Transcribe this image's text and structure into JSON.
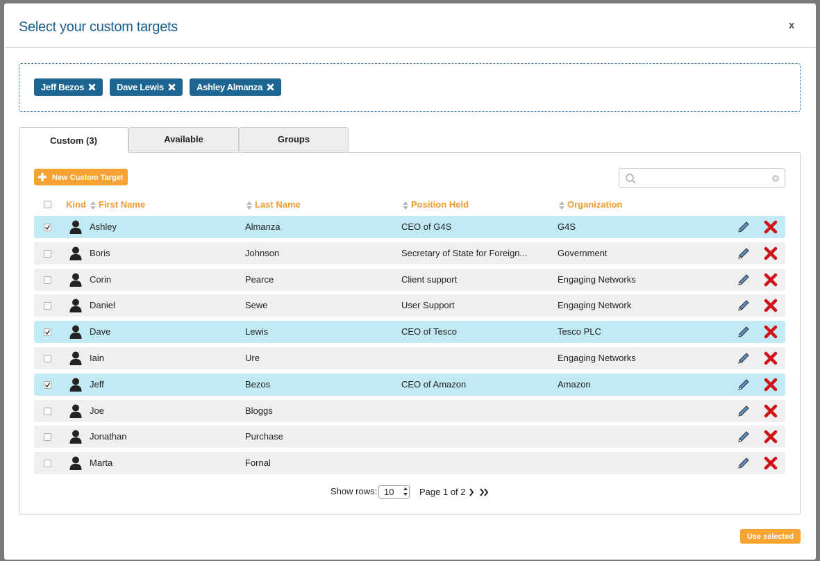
{
  "dialog": {
    "title": "Select your custom targets",
    "close": "x"
  },
  "selected": [
    "Jeff Bezos",
    "Dave Lewis",
    "Ashley Almanza"
  ],
  "tabs": [
    "Custom (3)",
    "Available",
    "Groups"
  ],
  "new_button": "New Custom Target",
  "table": {
    "headers": [
      "Kind",
      "First Name",
      "Last Name",
      "Position Held",
      "Organization"
    ],
    "rows": [
      {
        "checked": true,
        "first": "Ashley",
        "last": "Almanza",
        "position": "CEO of G4S",
        "organization": "G4S"
      },
      {
        "checked": false,
        "first": "Boris",
        "last": "Johnson",
        "position": "Secretary of State for Foreign...",
        "organization": "Government"
      },
      {
        "checked": false,
        "first": "Corin",
        "last": "Pearce",
        "position": "Client support",
        "organization": "Engaging Networks"
      },
      {
        "checked": false,
        "first": "Daniel",
        "last": "Sewe",
        "position": "User Support",
        "organization": "Engaging Network"
      },
      {
        "checked": true,
        "first": "Dave",
        "last": "Lewis",
        "position": "CEO of Tesco",
        "organization": "Tesco PLC"
      },
      {
        "checked": false,
        "first": "Iain",
        "last": "Ure",
        "organization": "Engaging Networks"
      },
      {
        "checked": true,
        "first": "Jeff",
        "last": "Bezos",
        "position": "CEO of Amazon",
        "organization": "Amazon"
      },
      {
        "checked": false,
        "first": "Joe",
        "last": "Bloggs"
      },
      {
        "checked": false,
        "first": "Jonathan",
        "last": "Purchase"
      },
      {
        "checked": false,
        "first": "Marta",
        "last": "Fornal"
      }
    ]
  },
  "pagination": {
    "show_rows_label": "Show rows:",
    "rows_per_page": 10,
    "page": "Page 1 of 2"
  },
  "use_selected": "Use selected"
}
